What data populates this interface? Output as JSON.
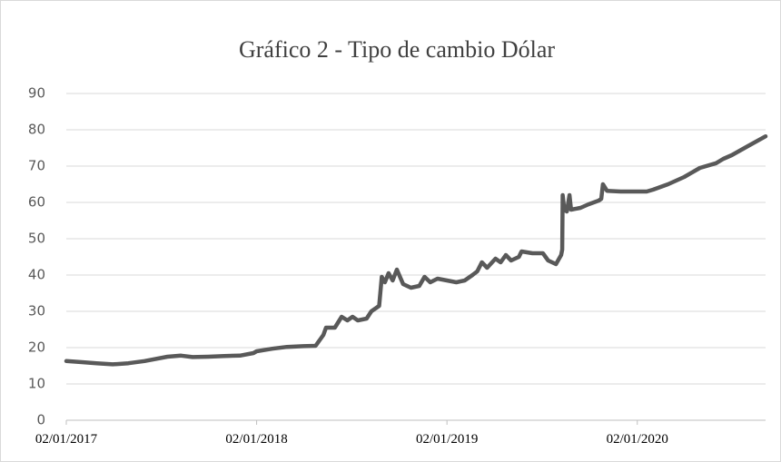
{
  "chart_data": {
    "type": "line",
    "title": "Gráfico 2 - Tipo de cambio Dólar",
    "x": [
      "2017-01-02",
      "2017-02-01",
      "2017-03-01",
      "2017-04-01",
      "2017-05-01",
      "2017-06-01",
      "2017-07-15",
      "2017-08-10",
      "2017-09-01",
      "2017-10-01",
      "2017-11-01",
      "2017-12-01",
      "2017-12-27",
      "2018-01-02",
      "2018-02-01",
      "2018-03-01",
      "2018-04-01",
      "2018-04-25",
      "2018-05-10",
      "2018-05-15",
      "2018-06-01",
      "2018-06-14",
      "2018-06-25",
      "2018-07-05",
      "2018-07-15",
      "2018-08-01",
      "2018-08-10",
      "2018-08-25",
      "2018-08-30",
      "2018-09-05",
      "2018-09-12",
      "2018-09-20",
      "2018-09-28",
      "2018-10-10",
      "2018-10-25",
      "2018-11-10",
      "2018-11-20",
      "2018-12-01",
      "2018-12-15",
      "2019-01-02",
      "2019-01-20",
      "2019-02-05",
      "2019-02-20",
      "2019-03-01",
      "2019-03-10",
      "2019-03-20",
      "2019-04-05",
      "2019-04-15",
      "2019-04-25",
      "2019-05-05",
      "2019-05-20",
      "2019-05-25",
      "2019-06-15",
      "2019-07-05",
      "2019-07-15",
      "2019-07-30",
      "2019-08-09",
      "2019-08-11",
      "2019-08-12",
      "2019-08-15",
      "2019-08-20",
      "2019-08-25",
      "2019-08-28",
      "2019-09-15",
      "2019-10-01",
      "2019-10-20",
      "2019-10-25",
      "2019-10-28",
      "2019-11-05",
      "2019-12-01",
      "2020-01-02",
      "2020-01-20",
      "2020-02-01",
      "2020-03-01",
      "2020-04-01",
      "2020-05-01",
      "2020-06-01",
      "2020-06-15",
      "2020-07-01",
      "2020-08-01",
      "2020-09-04"
    ],
    "series": [
      {
        "name": "Dólar",
        "color": "#595959",
        "values": [
          16.3,
          16,
          15.7,
          15.4,
          15.7,
          16.3,
          17.5,
          17.8,
          17.4,
          17.5,
          17.7,
          17.8,
          18.5,
          19,
          19.7,
          20.2,
          20.4,
          20.5,
          23.5,
          25.5,
          25.5,
          28.5,
          27.5,
          28.5,
          27.5,
          28,
          30,
          31.5,
          39.5,
          38,
          40.5,
          38.5,
          41.5,
          37.5,
          36.5,
          37,
          39.5,
          38,
          39,
          38.5,
          38,
          38.5,
          40,
          41,
          43.5,
          42,
          44.5,
          43.5,
          45.5,
          44,
          45,
          46.5,
          46,
          46,
          44,
          43,
          45.5,
          47,
          62,
          58,
          57.5,
          62,
          58,
          58.5,
          59.5,
          60.5,
          61,
          65,
          63.2,
          63,
          63,
          63,
          63.5,
          65,
          67,
          69.5,
          70.8,
          72,
          73,
          75.5,
          78.2
        ]
      }
    ],
    "xlim": [
      "2017-01-02",
      "2020-09-04"
    ],
    "xticks": [
      {
        "value": "2017-01-02",
        "label": "02/01/2017"
      },
      {
        "value": "2018-01-02",
        "label": "02/01/2018"
      },
      {
        "value": "2019-01-02",
        "label": "02/01/2019"
      },
      {
        "value": "2020-01-02",
        "label": "02/01/2020"
      }
    ],
    "ylim": [
      0,
      90
    ],
    "yticks": [
      0,
      10,
      20,
      30,
      40,
      50,
      60,
      70,
      80,
      90
    ],
    "grid": true
  }
}
